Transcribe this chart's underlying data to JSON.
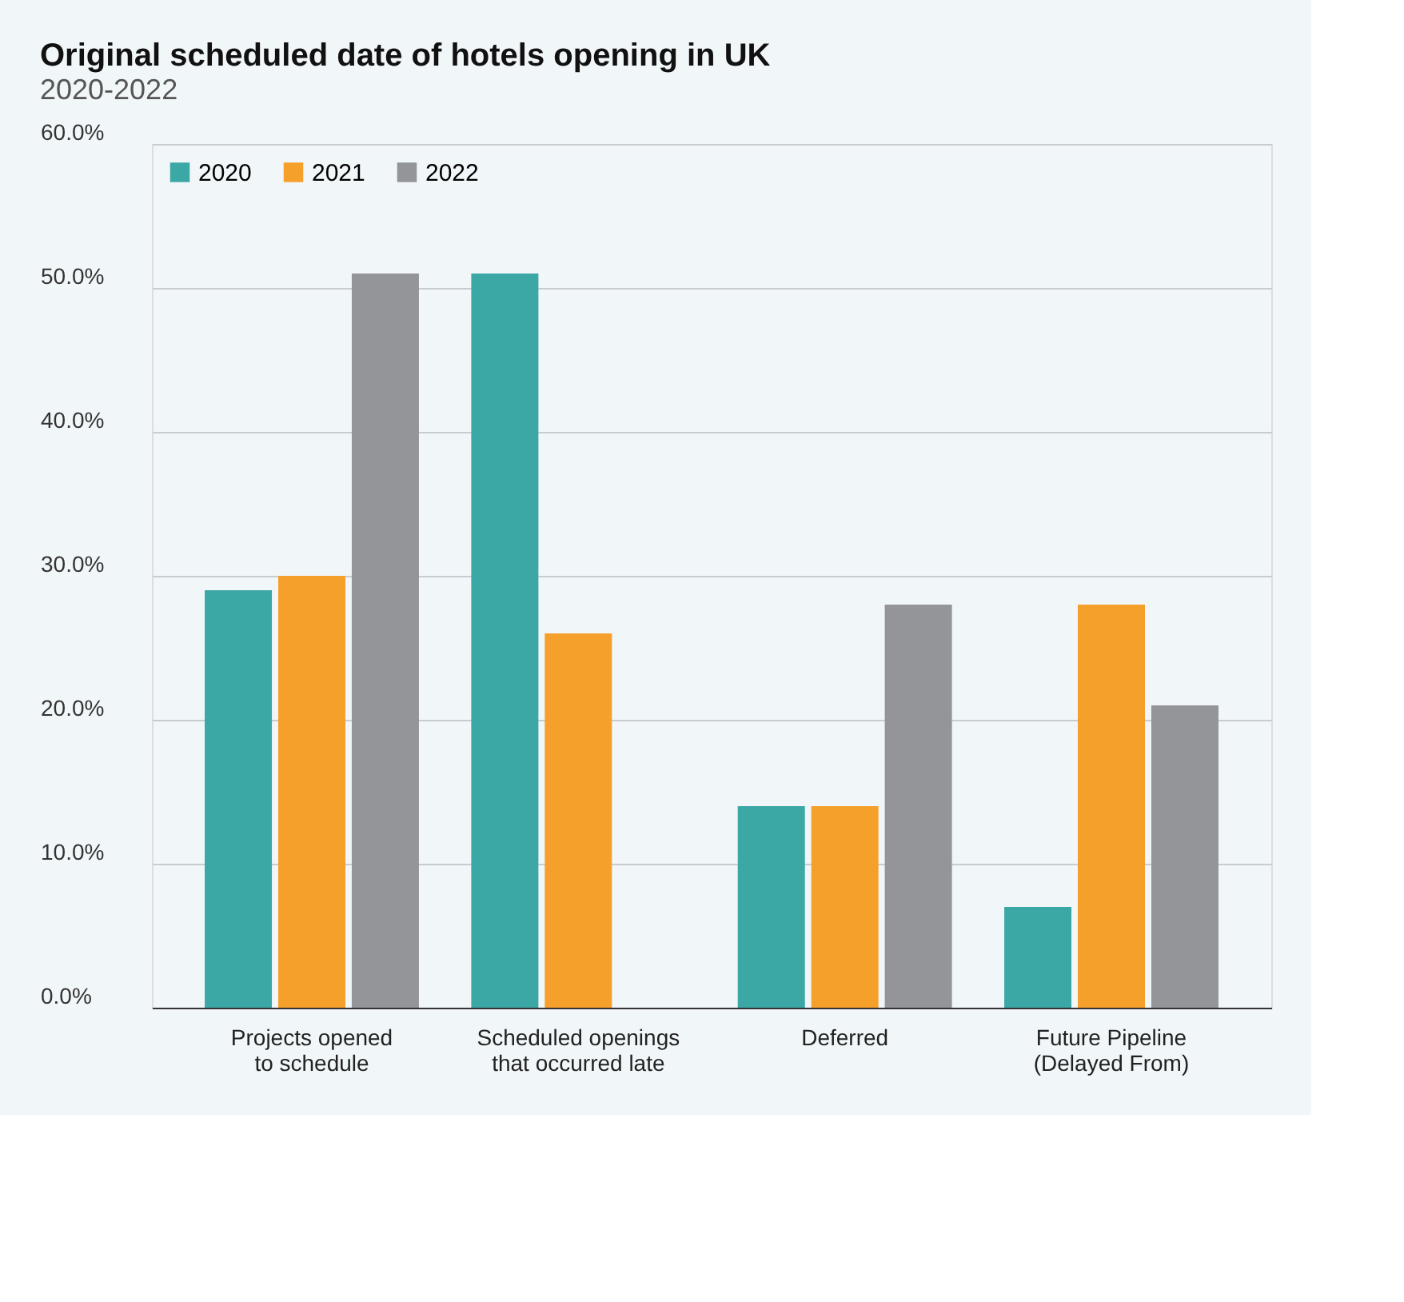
{
  "chart_data": {
    "type": "bar",
    "title": "Original scheduled date of hotels opening in UK",
    "subtitle": "2020-2022",
    "categories": [
      "Projects opened\nto schedule",
      "Scheduled openings\nthat occurred late",
      "Deferred",
      "Future Pipeline\n(Delayed From)"
    ],
    "series": [
      {
        "name": "2020",
        "color": "#3ca8a5",
        "values": [
          29,
          51,
          14,
          7
        ]
      },
      {
        "name": "2021",
        "color": "#f6a02c",
        "values": [
          30,
          26,
          14,
          28
        ]
      },
      {
        "name": "2022",
        "color": "#939598",
        "values": [
          51,
          null,
          28,
          21
        ]
      }
    ],
    "ylim": [
      0,
      60
    ],
    "yticks": [
      {
        "value": 0,
        "label": "0.0%"
      },
      {
        "value": 10,
        "label": "10.0%"
      },
      {
        "value": 20,
        "label": "20.0%"
      },
      {
        "value": 30,
        "label": "30.0%"
      },
      {
        "value": 40,
        "label": "40.0%"
      },
      {
        "value": 50,
        "label": "50.0%"
      },
      {
        "value": 60,
        "label": "60.0%"
      }
    ],
    "grid": "y",
    "legend": "top left"
  }
}
